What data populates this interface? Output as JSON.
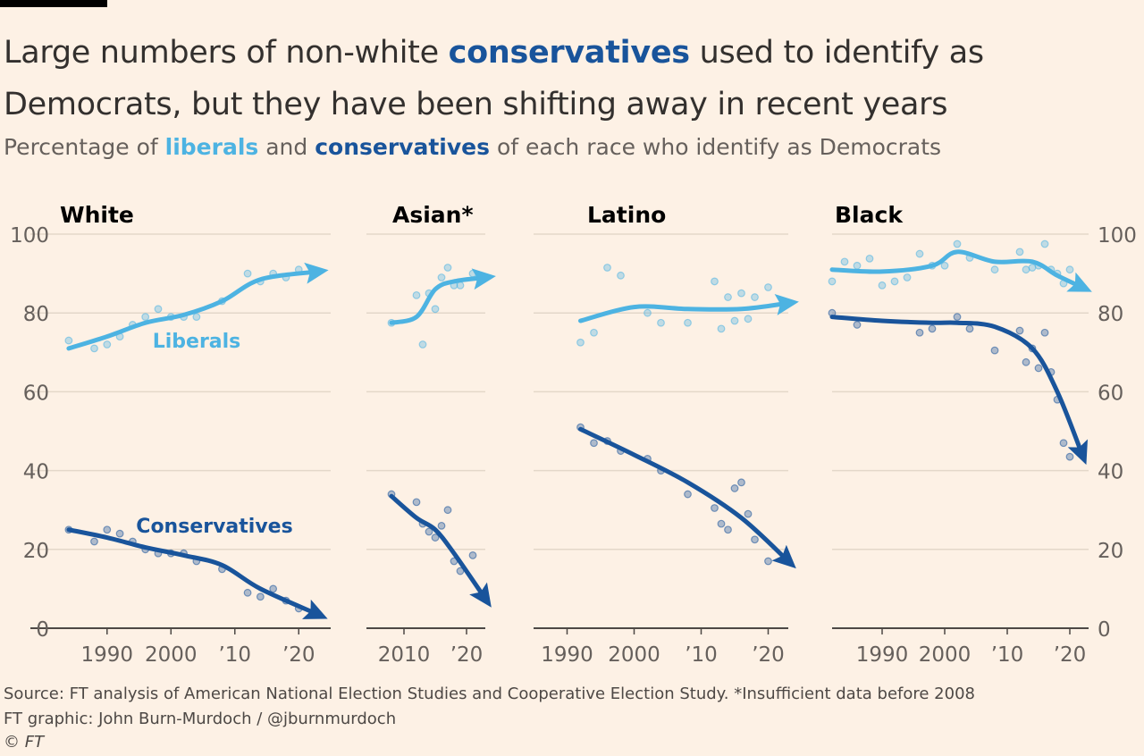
{
  "header": {
    "title": [
      "Large numbers of non-white ",
      "conservatives",
      " used to identify as",
      "Democrats, but they have been shifting away in recent years"
    ],
    "subtitle": [
      "Percentage of ",
      "liberals",
      " and ",
      "conservatives",
      " of each race who identify as Democrats"
    ]
  },
  "footer": {
    "source": "Source: FT analysis of American National Election Studies and Cooperative Election Study. *Insufficient data before 2008",
    "credit": "FT graphic: John Burn-Murdoch / @jburnmurdoch",
    "copyright": "© FT"
  },
  "chart_data": [
    {
      "type": "scatter",
      "title": "White",
      "ytick_labels": "left",
      "xlim": [
        1978,
        2025
      ],
      "ylim": [
        0,
        100
      ],
      "xticks": [
        1990,
        2000,
        {
          "value": 2010,
          "label": "’10"
        },
        {
          "value": 2020,
          "label": "’20"
        }
      ],
      "yticks": [
        0,
        20,
        40,
        60,
        80,
        100
      ],
      "x": [
        1984,
        1988,
        1990,
        1992,
        1994,
        1996,
        1998,
        2000,
        2002,
        2004,
        2008,
        2012,
        2014,
        2016,
        2018,
        2020
      ],
      "trend_x": [
        1984,
        1990,
        1996,
        2002,
        2008,
        2014,
        2023
      ],
      "series": [
        {
          "name": "Liberals",
          "color": "#4db3e2",
          "values": [
            73,
            71,
            72,
            74,
            77,
            79,
            81,
            79,
            79,
            79,
            83,
            90,
            88,
            90,
            89,
            91
          ],
          "trend": [
            71,
            74,
            77.5,
            79.5,
            83,
            88.5,
            90.5
          ]
        },
        {
          "name": "Conservatives",
          "color": "#19549b",
          "values": [
            25,
            22,
            25,
            24,
            22,
            20,
            19,
            19,
            19,
            17,
            15,
            9,
            8,
            10,
            7,
            5
          ],
          "trend": [
            25,
            23,
            20.5,
            18.5,
            16,
            10,
            3.5
          ]
        }
      ]
    },
    {
      "type": "scatter",
      "title": "Asian*",
      "ytick_labels": "none",
      "xlim": [
        2004,
        2023
      ],
      "ylim": [
        0,
        100
      ],
      "xticks": [
        2010,
        {
          "value": 2020,
          "label": "’20"
        }
      ],
      "yticks": [
        0,
        20,
        40,
        60,
        80,
        100
      ],
      "x": [
        2008,
        2012,
        2013,
        2014,
        2015,
        2016,
        2017,
        2018,
        2019,
        2021
      ],
      "trend_x": [
        2008,
        2012,
        2015,
        2018,
        2023
      ],
      "series": [
        {
          "color": "#4db3e2",
          "values": [
            77.5,
            84.5,
            72,
            85,
            81,
            89,
            91.5,
            87,
            87,
            90
          ],
          "trend": [
            77.5,
            79,
            86,
            88,
            89
          ]
        },
        {
          "color": "#19549b",
          "values": [
            34,
            32,
            26.5,
            24.5,
            23,
            26,
            30,
            17,
            14.5,
            18.5
          ],
          "trend": [
            33.5,
            28,
            25,
            19,
            7.5
          ]
        }
      ]
    },
    {
      "type": "scatter",
      "title": "Latino",
      "ytick_labels": "none",
      "xlim": [
        1985,
        2023
      ],
      "ylim": [
        0,
        100
      ],
      "xticks": [
        1990,
        2000,
        {
          "value": 2010,
          "label": "’10"
        },
        {
          "value": 2020,
          "label": "’20"
        }
      ],
      "yticks": [
        0,
        20,
        40,
        60,
        80,
        100
      ],
      "x": [
        1992,
        1994,
        1996,
        1998,
        2002,
        2004,
        2008,
        2012,
        2013,
        2014,
        2015,
        2016,
        2017,
        2018,
        2020
      ],
      "trend_x": [
        1992,
        2000,
        2008,
        2016,
        2023
      ],
      "series": [
        {
          "color": "#4db3e2",
          "values": [
            72.5,
            75,
            91.5,
            89.5,
            80,
            77.5,
            77.5,
            88,
            76,
            84,
            78,
            85,
            78.5,
            84,
            86.5
          ],
          "trend": [
            78,
            81.5,
            81,
            81,
            82.5
          ]
        },
        {
          "color": "#19549b",
          "values": [
            51,
            47,
            47.5,
            45,
            43,
            40,
            34,
            30.5,
            26.5,
            25,
            35.5,
            37,
            29,
            22.5,
            17
          ],
          "trend": [
            50.5,
            44,
            37,
            28,
            17
          ]
        }
      ]
    },
    {
      "type": "scatter",
      "title": "Black",
      "ytick_labels": "right",
      "xlim": [
        1982,
        2023
      ],
      "ylim": [
        0,
        100
      ],
      "xticks": [
        1990,
        2000,
        {
          "value": 2010,
          "label": "’10"
        },
        {
          "value": 2020,
          "label": "’20"
        }
      ],
      "yticks": [
        0,
        20,
        40,
        60,
        80,
        100
      ],
      "x": [
        1982,
        1984,
        1986,
        1988,
        1990,
        1992,
        1994,
        1996,
        1998,
        2000,
        2002,
        2004,
        2008,
        2012,
        2013,
        2014,
        2015,
        2016,
        2017,
        2018,
        2019,
        2020
      ],
      "trend_x": [
        1982,
        1990,
        1998,
        2002,
        2008,
        2014,
        2018,
        2022
      ],
      "series": [
        {
          "color": "#4db3e2",
          "values": [
            88,
            93,
            92,
            93.8,
            87,
            88,
            89,
            95,
            92,
            92,
            97.5,
            94,
            91,
            95.5,
            91,
            91.5,
            92,
            97.5,
            91,
            90,
            87.5,
            91
          ],
          "trend": [
            91,
            90.5,
            92,
            95.5,
            93,
            93,
            89.5,
            86.5
          ]
        },
        {
          "color": "#19549b",
          "values": [
            80,
            null,
            77,
            null,
            null,
            null,
            null,
            75,
            76,
            null,
            79,
            76,
            70.5,
            75.5,
            67.5,
            71,
            66,
            75,
            65,
            58,
            47,
            43.5
          ],
          "trend": [
            79,
            78,
            77.5,
            77.5,
            76.5,
            71,
            60,
            44
          ]
        }
      ]
    }
  ]
}
